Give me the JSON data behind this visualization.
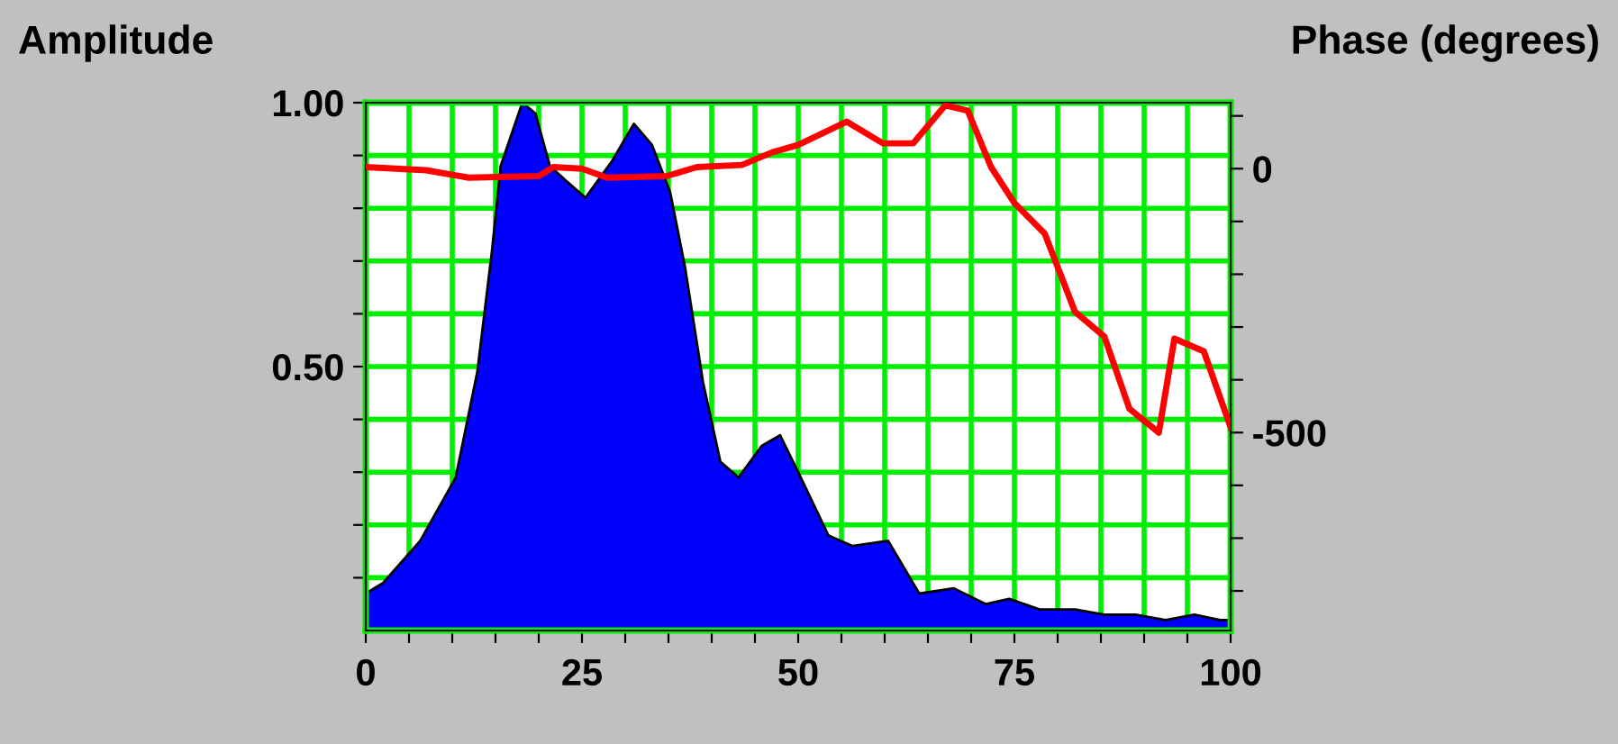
{
  "chart_data": {
    "type": "area",
    "ylabel": "Amplitude",
    "y2label": "Phase (degrees)",
    "grid": true,
    "legend": false,
    "marker": "none",
    "xlim": [
      0,
      100
    ],
    "xticks": [
      0,
      {
        "value": 5,
        "label": null
      },
      {
        "value": 10,
        "label": null
      },
      {
        "value": 15,
        "label": null
      },
      {
        "value": 20,
        "label": null
      },
      25,
      {
        "value": 30,
        "label": null
      },
      {
        "value": 35,
        "label": null
      },
      {
        "value": 40,
        "label": null
      },
      {
        "value": 45,
        "label": null
      },
      50,
      {
        "value": 55,
        "label": null
      },
      {
        "value": 60,
        "label": null
      },
      {
        "value": 65,
        "label": null
      },
      {
        "value": 70,
        "label": null
      },
      75,
      {
        "value": 80,
        "label": null
      },
      {
        "value": 85,
        "label": null
      },
      {
        "value": 90,
        "label": null
      },
      {
        "value": 95,
        "label": null
      },
      100
    ],
    "ylim": [
      0,
      1.0
    ],
    "yticks": [
      {
        "value": 0.1,
        "label": null
      },
      {
        "value": 0.2,
        "label": null
      },
      {
        "value": 0.3,
        "label": null
      },
      {
        "value": 0.4,
        "label": null
      },
      {
        "value": 0.5,
        "label": "0.50"
      },
      {
        "value": 0.6,
        "label": null
      },
      {
        "value": 0.7,
        "label": null
      },
      {
        "value": 0.8,
        "label": null
      },
      {
        "value": 0.9,
        "label": null
      },
      {
        "value": 1.0,
        "label": "1.00"
      }
    ],
    "y2lim": [
      -875,
      125
    ],
    "y2ticks": [
      {
        "value": -800,
        "label": null
      },
      {
        "value": -700,
        "label": null
      },
      {
        "value": -600,
        "label": null
      },
      -500,
      {
        "value": -400,
        "label": null
      },
      {
        "value": -300,
        "label": null
      },
      {
        "value": -200,
        "label": null
      },
      {
        "value": -100,
        "label": null
      },
      0,
      {
        "value": 100,
        "label": null
      }
    ],
    "series": [
      {
        "color": "#0000ff",
        "x": [
          0,
          2,
          6.3,
          10.4,
          12.9,
          14.6,
          15.6,
          18.1,
          19.6,
          21.3,
          23.3,
          25.4,
          28.5,
          31,
          33.1,
          35.2,
          36.9,
          39,
          41,
          43.1,
          45.8,
          47.9,
          50,
          53.5,
          56.3,
          60.4,
          64,
          68,
          71.7,
          74.4,
          77.9,
          82,
          85.4,
          89,
          92.5,
          95.8,
          98.8,
          100
        ],
        "values": [
          0.07,
          0.09,
          0.17,
          0.29,
          0.49,
          0.72,
          0.88,
          1.0,
          0.98,
          0.88,
          0.85,
          0.82,
          0.89,
          0.96,
          0.92,
          0.83,
          0.69,
          0.47,
          0.32,
          0.29,
          0.35,
          0.37,
          0.3,
          0.18,
          0.16,
          0.17,
          0.07,
          0.08,
          0.05,
          0.06,
          0.04,
          0.04,
          0.03,
          0.03,
          0.02,
          0.03,
          0.02,
          0.02
        ]
      },
      {
        "type": "line",
        "axis": "y2",
        "color": "#ff0000",
        "x": [
          0,
          7,
          11.9,
          20,
          21.7,
          25,
          27.9,
          34.8,
          38.3,
          43.5,
          47,
          50,
          55.6,
          59.8,
          63.3,
          67,
          69.6,
          72.3,
          75,
          78.5,
          82,
          85.4,
          88.3,
          91.7,
          93.5,
          96.9,
          100
        ],
        "values": [
          3,
          -3,
          -17,
          -14,
          3,
          0,
          -17,
          -14,
          3,
          7,
          31,
          45,
          89,
          48,
          48,
          120,
          110,
          3,
          -65,
          -123,
          -271,
          -318,
          -455,
          -500,
          -322,
          -346,
          -490
        ]
      }
    ]
  }
}
